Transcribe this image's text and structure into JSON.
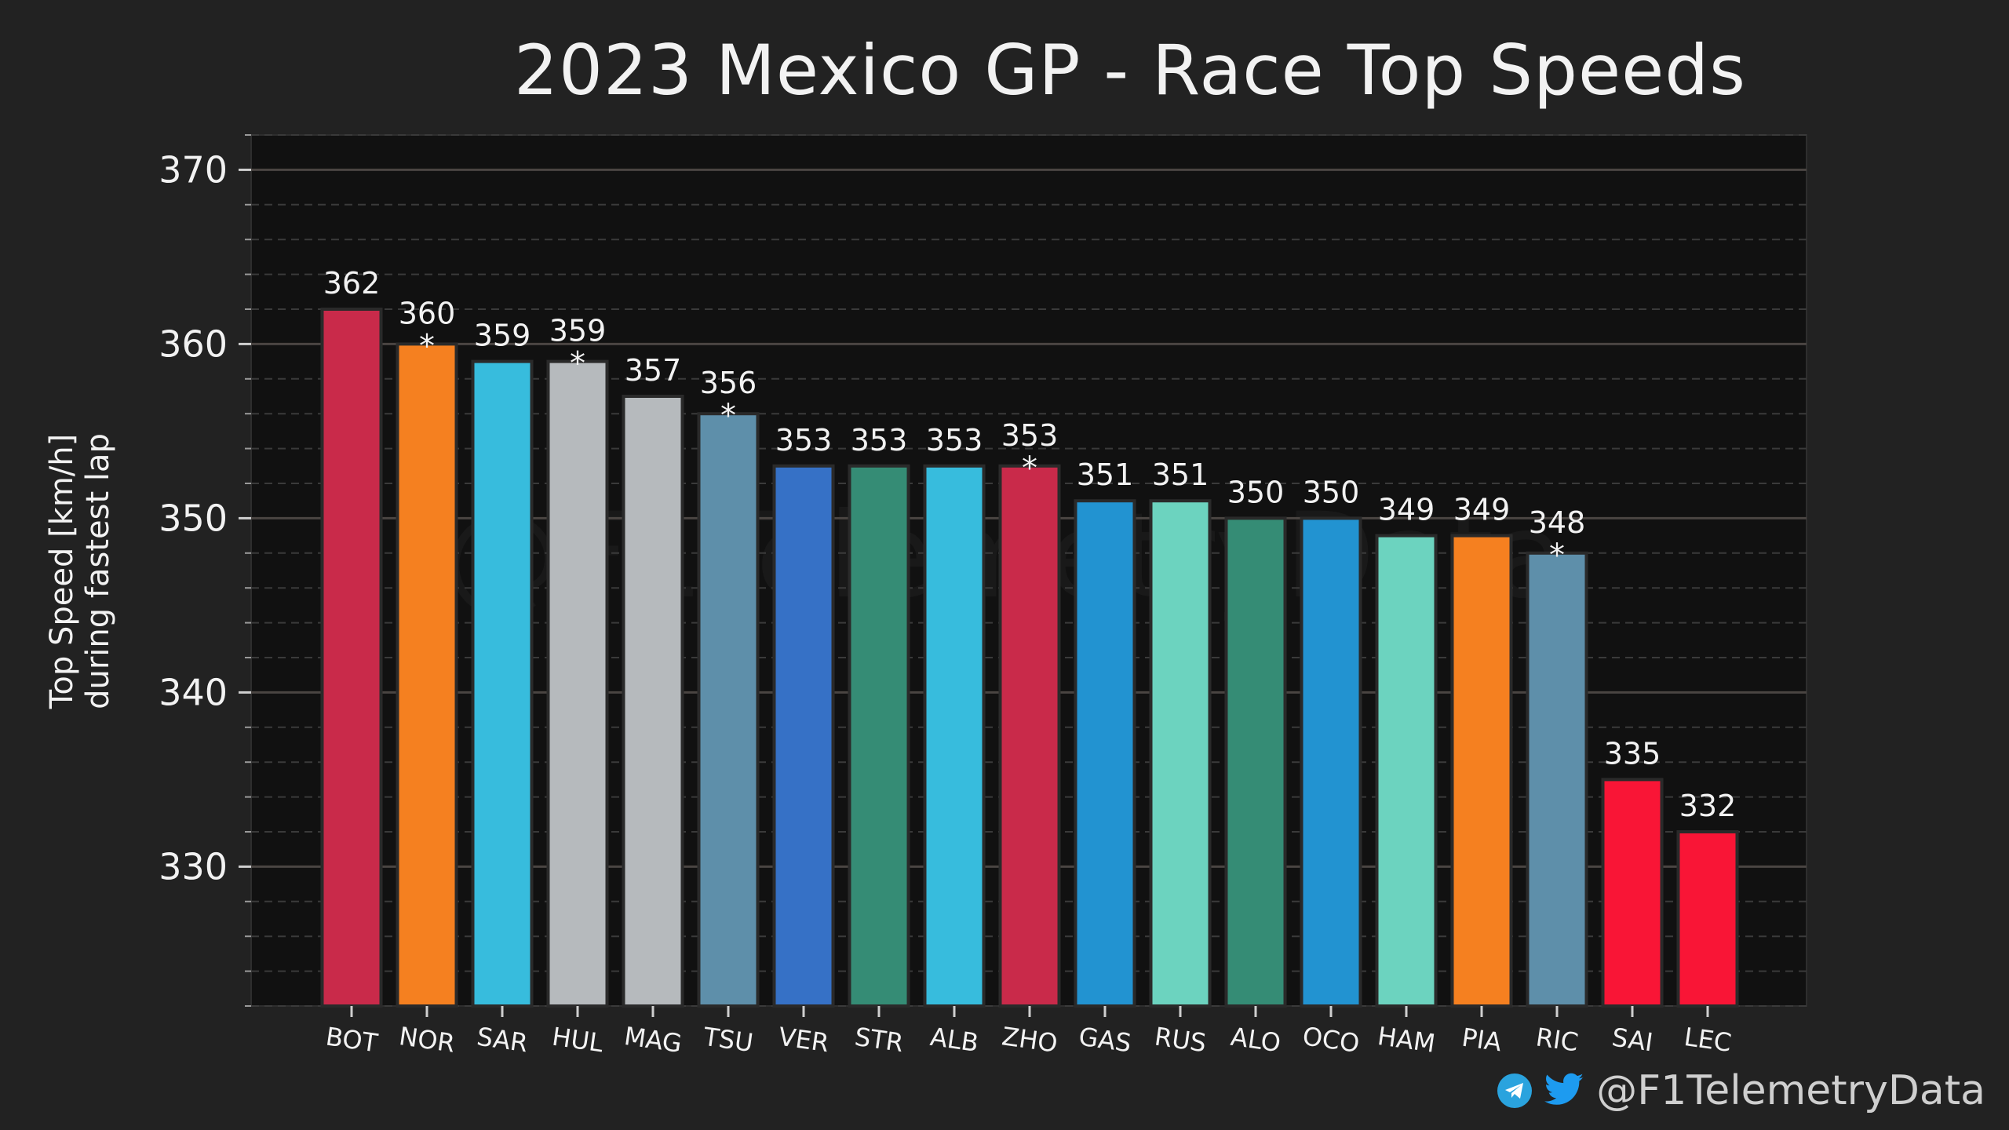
{
  "chart_data": {
    "type": "bar",
    "title": "2023 Mexico GP - Race Top Speeds",
    "ylabel_line1": "Top Speed [km/h]",
    "ylabel_line2": "during fastest lap",
    "ylim": [
      322,
      372
    ],
    "yticks": [
      330,
      340,
      350,
      360,
      370
    ],
    "grid": true,
    "categories": [
      "BOT",
      "NOR",
      "SAR",
      "HUL",
      "MAG",
      "TSU",
      "VER",
      "STR",
      "ALB",
      "ZHO",
      "GAS",
      "RUS",
      "ALO",
      "OCO",
      "HAM",
      "PIA",
      "RIC",
      "SAI",
      "LEC"
    ],
    "values": [
      362,
      360,
      359,
      359,
      357,
      356,
      353,
      353,
      353,
      353,
      351,
      351,
      350,
      350,
      349,
      349,
      348,
      335,
      332
    ],
    "asterisk": [
      false,
      true,
      false,
      true,
      false,
      true,
      false,
      false,
      false,
      true,
      false,
      false,
      false,
      false,
      false,
      false,
      true,
      false,
      false
    ],
    "colors": [
      "#c92a4a",
      "#f58020",
      "#37bcdd",
      "#b6babd",
      "#b6babd",
      "#5e8faa",
      "#3671c6",
      "#358c75",
      "#37bcdd",
      "#c92a4a",
      "#2293d1",
      "#6cd3bf",
      "#358c75",
      "#2293d1",
      "#6cd3bf",
      "#f58020",
      "#5e8faa",
      "#f91536",
      "#f91536"
    ],
    "asterisk_symbol": "*"
  },
  "watermark": "@F1TelemetryData",
  "credit": {
    "handle": "@F1TelemetryData",
    "icons": [
      "telegram-icon",
      "twitter-icon"
    ]
  },
  "colors": {
    "background": "#222222",
    "plot_background": "#111111",
    "major_grid": "#4a4542",
    "minor_grid": "#3a3a3a",
    "text": "#f2f2f2"
  }
}
